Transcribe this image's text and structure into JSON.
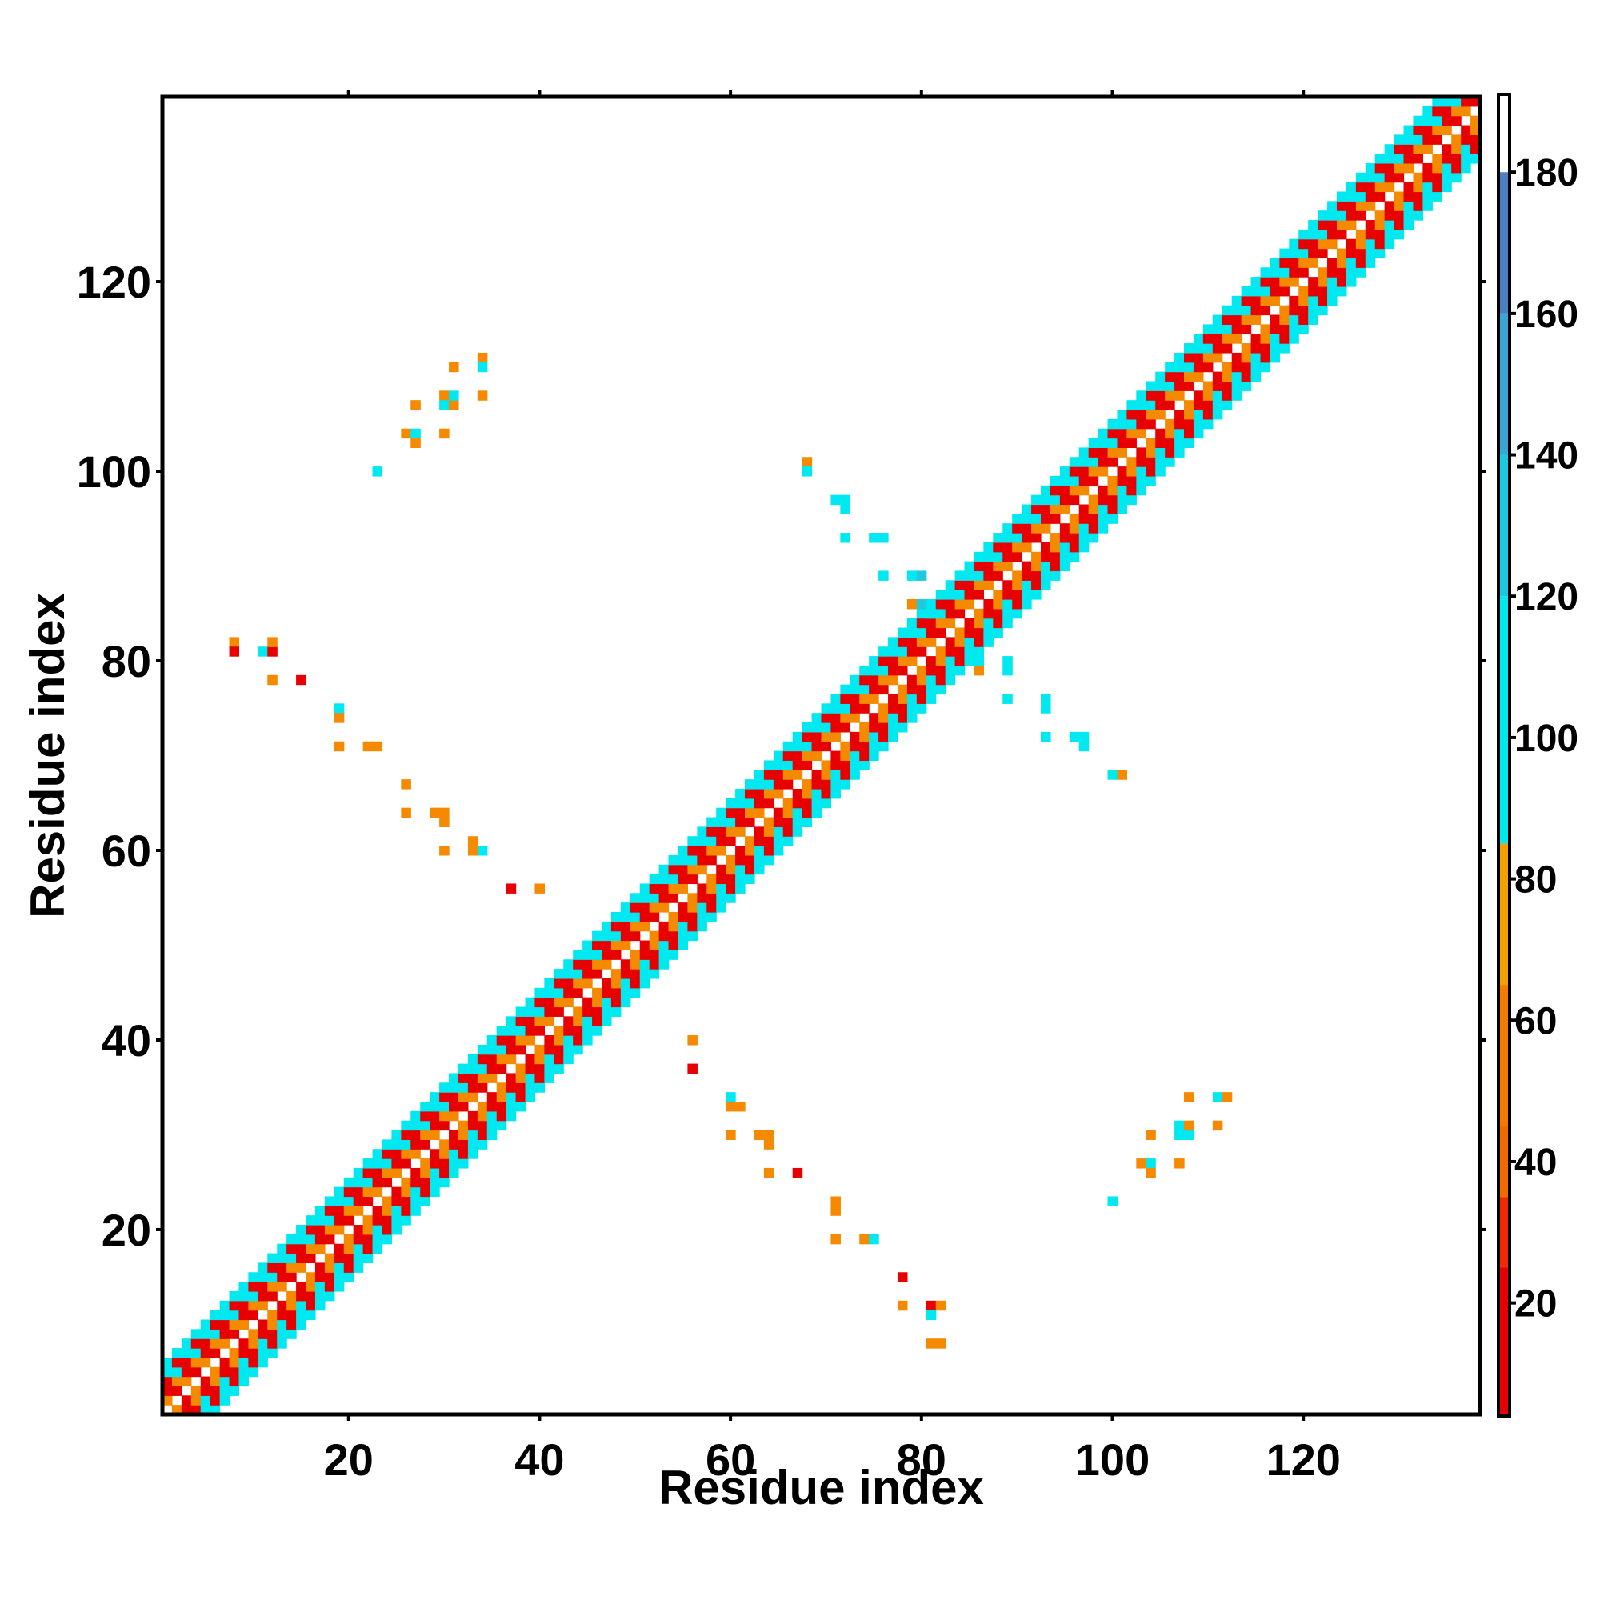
{
  "chart_data": {
    "type": "heatmap",
    "title": "",
    "xlabel": "Residue index",
    "ylabel": "Residue index",
    "xlim": [
      1,
      138
    ],
    "ylim": [
      1,
      139
    ],
    "x_ticks": [
      20,
      40,
      60,
      80,
      100,
      120
    ],
    "y_ticks": [
      20,
      40,
      60,
      80,
      100,
      120
    ],
    "colorbar": {
      "ticks": [
        20,
        40,
        60,
        80,
        100,
        120,
        140,
        160,
        180
      ],
      "range": [
        4,
        191
      ],
      "segments": [
        {
          "from": 4,
          "to": 25,
          "color": "#e60000"
        },
        {
          "from": 25,
          "to": 35,
          "color": "#ef2a00"
        },
        {
          "from": 35,
          "to": 45,
          "color": "#f06a00"
        },
        {
          "from": 45,
          "to": 65,
          "color": "#f47a00"
        },
        {
          "from": 65,
          "to": 85,
          "color": "#f3a100"
        },
        {
          "from": 85,
          "to": 120,
          "color": "#00e8f0"
        },
        {
          "from": 120,
          "to": 140,
          "color": "#1cc8e0"
        },
        {
          "from": 140,
          "to": 160,
          "color": "#3aa6d6"
        },
        {
          "from": 160,
          "to": 180,
          "color": "#4a7fc0"
        },
        {
          "from": 180,
          "to": 191,
          "color": "#ffffff"
        }
      ]
    },
    "cell_colors": {
      "1": "#e60000",
      "2": "#f58a00",
      "3": "#00e8f0",
      "4": "#20c8e0"
    },
    "diagonal_band": {
      "n": 138,
      "offsets": [
        {
          "d": 1,
          "pattern": [
            1,
            2
          ]
        },
        {
          "d": 2,
          "pattern": [
            2,
            1
          ]
        },
        {
          "d": 3,
          "pattern": [
            3,
            1
          ]
        },
        {
          "d": 4,
          "pattern": [
            1,
            3
          ]
        },
        {
          "d": 5,
          "pattern": [
            3,
            3
          ]
        }
      ]
    },
    "off_diagonal_contacts": [
      [
        8,
        82,
        2
      ],
      [
        8,
        81,
        1
      ],
      [
        11,
        81,
        3
      ],
      [
        12,
        81,
        1
      ],
      [
        12,
        82,
        2
      ],
      [
        12,
        78,
        2
      ],
      [
        15,
        78,
        1
      ],
      [
        19,
        75,
        3
      ],
      [
        19,
        74,
        2
      ],
      [
        19,
        71,
        2
      ],
      [
        22,
        71,
        2
      ],
      [
        23,
        71,
        2
      ],
      [
        26,
        67,
        2
      ],
      [
        26,
        64,
        2
      ],
      [
        29,
        64,
        2
      ],
      [
        30,
        64,
        2
      ],
      [
        30,
        63,
        2
      ],
      [
        30,
        60,
        2
      ],
      [
        33,
        61,
        2
      ],
      [
        33,
        60,
        2
      ],
      [
        34,
        60,
        3
      ],
      [
        37,
        56,
        1
      ],
      [
        40,
        56,
        2
      ],
      [
        23,
        100,
        3
      ],
      [
        26,
        104,
        2
      ],
      [
        27,
        104,
        3
      ],
      [
        27,
        103,
        2
      ],
      [
        27,
        107,
        2
      ],
      [
        30,
        104,
        2
      ],
      [
        30,
        108,
        2
      ],
      [
        30,
        107,
        3
      ],
      [
        31,
        107,
        2
      ],
      [
        31,
        108,
        3
      ],
      [
        31,
        111,
        2
      ],
      [
        34,
        112,
        2
      ],
      [
        34,
        111,
        3
      ],
      [
        34,
        108,
        2
      ],
      [
        68,
        101,
        2
      ],
      [
        68,
        100,
        3
      ],
      [
        71,
        97,
        3
      ],
      [
        72,
        97,
        3
      ],
      [
        72,
        96,
        3
      ],
      [
        72,
        93,
        3
      ],
      [
        75,
        93,
        3
      ],
      [
        76,
        93,
        3
      ],
      [
        76,
        89,
        3
      ],
      [
        79,
        89,
        3
      ],
      [
        80,
        89,
        4
      ],
      [
        79,
        86,
        2
      ],
      [
        80,
        86,
        4
      ],
      [
        81,
        85,
        3
      ],
      [
        56,
        40,
        2
      ],
      [
        56,
        37,
        1
      ],
      [
        60,
        34,
        3
      ],
      [
        60,
        33,
        2
      ],
      [
        61,
        33,
        2
      ],
      [
        60,
        30,
        2
      ],
      [
        63,
        30,
        2
      ],
      [
        64,
        30,
        2
      ],
      [
        64,
        29,
        2
      ],
      [
        64,
        26,
        2
      ],
      [
        67,
        26,
        1
      ],
      [
        71,
        23,
        2
      ],
      [
        71,
        22,
        2
      ],
      [
        71,
        19,
        2
      ],
      [
        74,
        19,
        2
      ],
      [
        75,
        19,
        3
      ],
      [
        78,
        15,
        1
      ],
      [
        78,
        12,
        2
      ],
      [
        81,
        12,
        1
      ],
      [
        82,
        12,
        2
      ],
      [
        81,
        11,
        3
      ],
      [
        81,
        8,
        2
      ],
      [
        82,
        8,
        2
      ],
      [
        100,
        68,
        3
      ],
      [
        101,
        68,
        2
      ],
      [
        93,
        72,
        3
      ],
      [
        96,
        72,
        3
      ],
      [
        97,
        72,
        3
      ],
      [
        97,
        71,
        3
      ],
      [
        93,
        75,
        3
      ],
      [
        93,
        76,
        3
      ],
      [
        89,
        76,
        3
      ],
      [
        89,
        79,
        3
      ],
      [
        89,
        80,
        3
      ],
      [
        86,
        80,
        3
      ],
      [
        85,
        81,
        3
      ],
      [
        86,
        79,
        2
      ],
      [
        100,
        23,
        3
      ],
      [
        103,
        27,
        2
      ],
      [
        104,
        27,
        3
      ],
      [
        104,
        26,
        2
      ],
      [
        104,
        30,
        2
      ],
      [
        107,
        27,
        2
      ],
      [
        107,
        30,
        3
      ],
      [
        108,
        30,
        3
      ],
      [
        107,
        31,
        3
      ],
      [
        108,
        31,
        2
      ],
      [
        108,
        34,
        2
      ],
      [
        111,
        31,
        2
      ],
      [
        111,
        34,
        3
      ],
      [
        112,
        34,
        2
      ]
    ]
  }
}
